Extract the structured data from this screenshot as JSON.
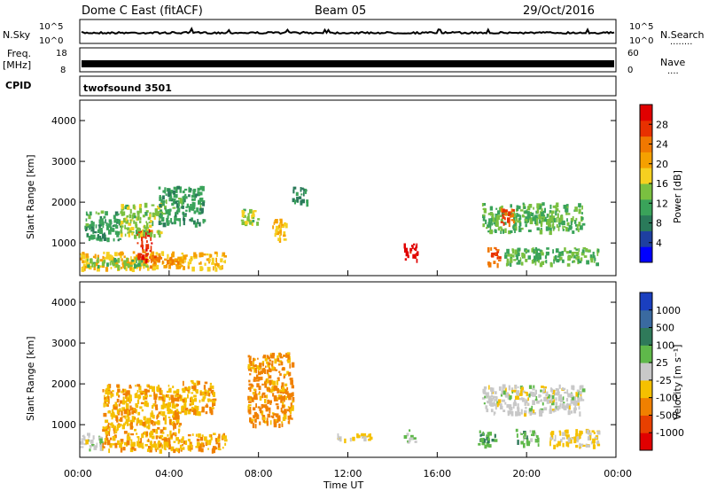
{
  "header": {
    "title": "Dome C East (fitACF)",
    "beam": "Beam 05",
    "date": "29/Oct/2016",
    "program": "twofsound 3501"
  },
  "left_labels": {
    "nsky": "N.Sky",
    "freq_line1": "Freq.",
    "freq_line2": "[MHz]",
    "cpid": "CPID"
  },
  "right_labels": {
    "nsearch": "N.Search",
    "nsearch_dots": "........",
    "nave": "Nave",
    "nave_dots": "...."
  },
  "noise_axis": {
    "top": "10^5",
    "bottom": "10^0"
  },
  "freq_axis": {
    "left_top": "18",
    "left_bottom": "8",
    "right_top": "60",
    "right_bottom": "0"
  },
  "x_axis": {
    "label": "Time UT",
    "ticks": [
      "00:00",
      "04:00",
      "08:00",
      "12:00",
      "16:00",
      "20:00",
      "00:00"
    ]
  },
  "y_axis": {
    "label": "Slant Range [km]",
    "ticks": [
      "1000",
      "2000",
      "3000",
      "4000"
    ]
  },
  "power_colorbar": {
    "label": "Power [dB]",
    "ticks": [
      "4",
      "8",
      "12",
      "16",
      "20",
      "24",
      "28"
    ],
    "colors": [
      "#0000ff",
      "#1e3fa0",
      "#2a7a5a",
      "#3aa35a",
      "#7ac040",
      "#f5d020",
      "#f5a000",
      "#f07800",
      "#e83000",
      "#e00000"
    ]
  },
  "velocity_colorbar": {
    "label": "Velocity [m s⁻¹]",
    "ticks": [
      "1000",
      "500",
      "100",
      "25",
      "-25",
      "-100",
      "-500",
      "-1000"
    ],
    "colors": [
      "#1a3fbf",
      "#3a6aa0",
      "#2f7a5a",
      "#5fb84a",
      "#c8c8c8",
      "#f5c000",
      "#f08000",
      "#e84000",
      "#e00000"
    ]
  },
  "chart_data": [
    {
      "type": "heatmap",
      "panel": "power",
      "x_unit": "hours UT",
      "xlim": [
        0,
        24
      ],
      "ylim": [
        200,
        4500
      ],
      "clim": [
        0,
        30
      ],
      "patches": [
        {
          "x0": 0.0,
          "x1": 6.5,
          "y0": 400,
          "y1": 800,
          "value": 18
        },
        {
          "x0": 0.3,
          "x1": 3.0,
          "y0": 450,
          "y1": 650,
          "value": 12
        },
        {
          "x0": 2.5,
          "x1": 3.2,
          "y0": 600,
          "y1": 1400,
          "value": 26
        },
        {
          "x0": 3.0,
          "x1": 4.6,
          "y0": 450,
          "y1": 700,
          "value": 22
        },
        {
          "x0": 0.2,
          "x1": 1.8,
          "y0": 1100,
          "y1": 1800,
          "value": 10
        },
        {
          "x0": 1.8,
          "x1": 3.6,
          "y0": 1200,
          "y1": 2000,
          "value": 14
        },
        {
          "x0": 3.5,
          "x1": 5.5,
          "y0": 1500,
          "y1": 2400,
          "value": 10
        },
        {
          "x0": 7.2,
          "x1": 8.0,
          "y0": 1500,
          "y1": 1900,
          "value": 14
        },
        {
          "x0": 8.5,
          "x1": 9.2,
          "y0": 1100,
          "y1": 1600,
          "value": 18
        },
        {
          "x0": 9.5,
          "x1": 10.2,
          "y0": 2000,
          "y1": 2400,
          "value": 8
        },
        {
          "x0": 14.5,
          "x1": 15.1,
          "y0": 600,
          "y1": 1000,
          "value": 28
        },
        {
          "x0": 18.2,
          "x1": 18.8,
          "y0": 500,
          "y1": 900,
          "value": 24
        },
        {
          "x0": 18.0,
          "x1": 22.5,
          "y0": 1300,
          "y1": 2000,
          "value": 12
        },
        {
          "x0": 19.0,
          "x1": 23.2,
          "y0": 500,
          "y1": 900,
          "value": 12
        },
        {
          "x0": 18.8,
          "x1": 19.4,
          "y0": 1500,
          "y1": 1900,
          "value": 24
        }
      ]
    },
    {
      "type": "heatmap",
      "panel": "velocity",
      "x_unit": "hours UT",
      "xlim": [
        0,
        24
      ],
      "ylim": [
        200,
        4500
      ],
      "clim": [
        -1000,
        1000
      ],
      "patches": [
        {
          "x0": 0.0,
          "x1": 1.0,
          "y0": 400,
          "y1": 800,
          "value": 25
        },
        {
          "x0": 1.0,
          "x1": 6.5,
          "y0": 400,
          "y1": 800,
          "value": -300
        },
        {
          "x0": 1.0,
          "x1": 4.5,
          "y0": 800,
          "y1": 2000,
          "value": -300
        },
        {
          "x0": 4.5,
          "x1": 6.0,
          "y0": 1300,
          "y1": 2100,
          "value": -300
        },
        {
          "x0": 7.5,
          "x1": 9.5,
          "y0": 1000,
          "y1": 2800,
          "value": -400
        },
        {
          "x0": 14.5,
          "x1": 15.0,
          "y0": 600,
          "y1": 900,
          "value": 50
        },
        {
          "x0": 11.3,
          "x1": 13.0,
          "y0": 650,
          "y1": 800,
          "value": -150
        },
        {
          "x0": 17.8,
          "x1": 18.6,
          "y0": 500,
          "y1": 900,
          "value": 300
        },
        {
          "x0": 18.0,
          "x1": 22.5,
          "y0": 1300,
          "y1": 2000,
          "value": 0
        },
        {
          "x0": 21.0,
          "x1": 23.2,
          "y0": 500,
          "y1": 900,
          "value": -150
        },
        {
          "x0": 19.5,
          "x1": 20.5,
          "y0": 500,
          "y1": 900,
          "value": 200
        }
      ]
    }
  ]
}
